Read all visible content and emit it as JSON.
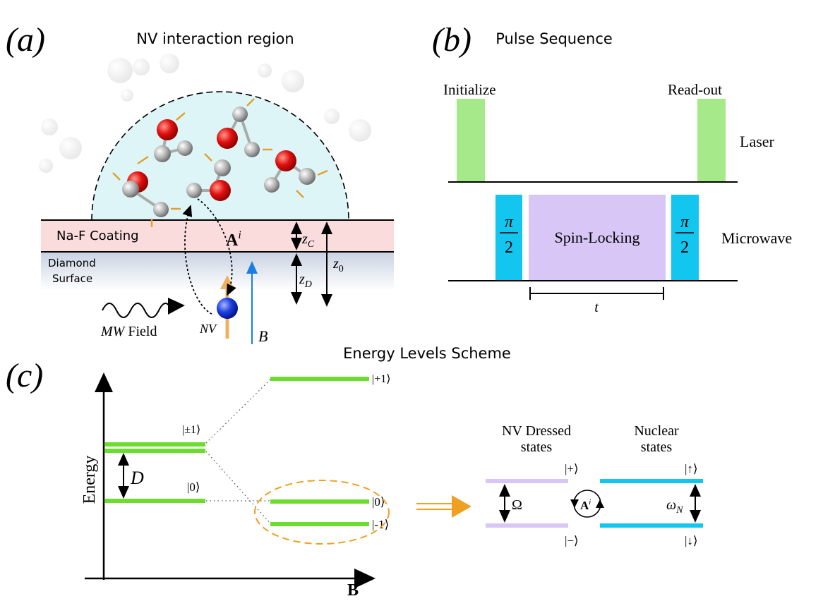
{
  "panel_a": {
    "label": "(a)",
    "title": "NV interaction region",
    "coating": "Na-F Coating",
    "surface": [
      "Diamond",
      "Surface"
    ],
    "coupling": {
      "symbol": "A",
      "superscript": "i"
    },
    "distances": [
      {
        "symbol": "z",
        "subscript": "C"
      },
      {
        "symbol": "z",
        "subscript": "D"
      },
      {
        "symbol": "z",
        "subscript": "0"
      }
    ],
    "mw_field": {
      "symbol": "MW",
      "text": "Field"
    },
    "nv": "NV",
    "field": "B"
  },
  "panel_b": {
    "label": "(b)",
    "title": "Pulse Sequence",
    "laser_pulses": [
      "Initialize",
      "Read-out"
    ],
    "laser": "Laser",
    "pulses": [
      {
        "numerator": "π",
        "denominator": "2"
      },
      {
        "numerator": "π",
        "denominator": "2"
      }
    ],
    "spin_locking": "Spin-Locking",
    "microwave": "Microwave",
    "duration": "t"
  },
  "panel_c": {
    "label": "(c)",
    "title": "Energy Levels Scheme",
    "y_axis": "Energy",
    "x_axis": "B",
    "splitting": "D",
    "zero_field_levels": [
      "|±1⟩",
      "|0⟩"
    ],
    "field_levels": [
      "|+1⟩",
      "|0⟩",
      "|-1⟩"
    ],
    "dressed": {
      "title": [
        "NV Dressed",
        "states"
      ],
      "levels": [
        "|+⟩",
        "|−⟩"
      ],
      "gap": "Ω"
    },
    "nuclear": {
      "title": [
        "Nuclear",
        "states"
      ],
      "levels": [
        "|↑⟩",
        "|↓⟩"
      ],
      "gap": {
        "symbol": "ω",
        "subscript": "N"
      }
    },
    "coupling": {
      "symbol": "A",
      "superscript": "i"
    }
  }
}
